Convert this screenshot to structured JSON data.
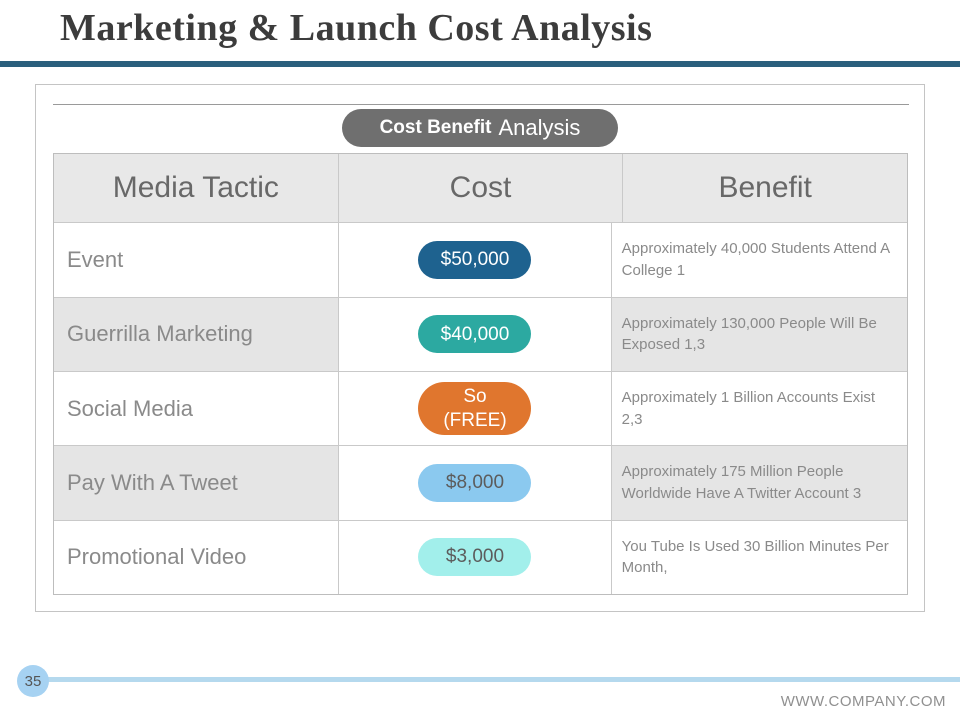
{
  "slide": {
    "title": "Marketing & Launch Cost Analysis",
    "page_number": "35",
    "footer_url": "WWW.COMPANY.COM"
  },
  "badge": {
    "label_bold": "Cost Benefit",
    "label_regular": "Analysis"
  },
  "table": {
    "headers": [
      "Media Tactic",
      "Cost",
      "Benefit"
    ],
    "rows": [
      {
        "tactic": "Event",
        "cost": "$50,000",
        "cost_bg": "#1e628f",
        "cost_fg": "#ffffff",
        "benefit": "Approximately 40,000 Students Attend A College 1"
      },
      {
        "tactic": "Guerrilla Marketing",
        "cost": "$40,000",
        "cost_bg": "#2ca9a1",
        "cost_fg": "#ffffff",
        "benefit": "Approximately 130,000 People Will Be Exposed 1,3"
      },
      {
        "tactic": "Social Media",
        "cost": "So\n(FREE)",
        "cost_bg": "#e0762e",
        "cost_fg": "#ffffff",
        "benefit": "Approximately 1 Billion Accounts Exist 2,3"
      },
      {
        "tactic": "Pay With A Tweet",
        "cost": "$8,000",
        "cost_bg": "#8bc9ef",
        "cost_fg": "#5c5c5c",
        "benefit": "Approximately 175 Million People Worldwide Have A Twitter Account 3"
      },
      {
        "tactic": "Promotional Video",
        "cost": "$3,000",
        "cost_bg": "#a2efeb",
        "cost_fg": "#5c5c5c",
        "benefit": "You Tube Is Used 30 Billion Minutes Per Month,"
      }
    ]
  },
  "colors": {
    "title_rule": "#2a5f7d",
    "badge_bg": "#6f6f6f",
    "header_bg": "#e8e8e8",
    "striped_row_bg": "#e5e5e5",
    "footer_line": "#b5d9ee",
    "page_circle_bg": "#a6d2f2"
  }
}
